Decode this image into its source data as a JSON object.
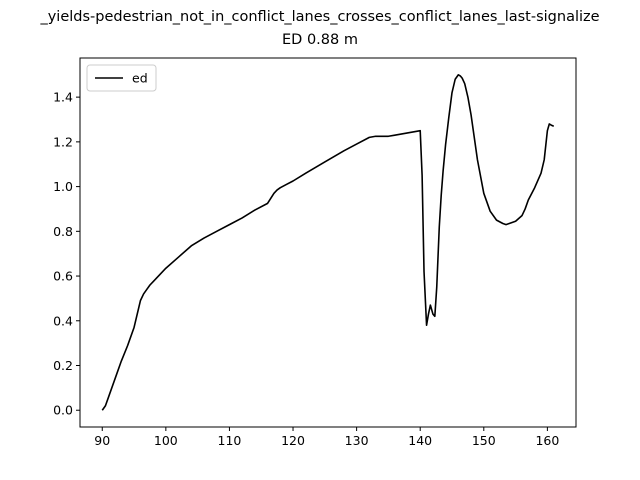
{
  "chart_data": {
    "type": "line",
    "title": "_yields-pedestrian_not_in_conflict_lanes_crosses_conflict_lanes_last-signalize",
    "subtitle": "ED 0.88 m",
    "xlabel": "",
    "ylabel": "",
    "xlim": [
      86.5,
      164.5
    ],
    "ylim": [
      -0.075,
      1.575
    ],
    "x_ticks": [
      90,
      100,
      110,
      120,
      130,
      140,
      150,
      160
    ],
    "x_tick_labels": [
      "90",
      "100",
      "110",
      "120",
      "130",
      "140",
      "150",
      "160"
    ],
    "y_ticks": [
      0.0,
      0.2,
      0.4,
      0.6,
      0.8,
      1.0,
      1.2,
      1.4
    ],
    "y_tick_labels": [
      "0.0",
      "0.2",
      "0.4",
      "0.6",
      "0.8",
      "1.0",
      "1.2",
      "1.4"
    ],
    "grid": false,
    "legend_position": "top-left",
    "series": [
      {
        "name": "ed",
        "color": "#000000",
        "x": [
          90.0,
          90.5,
          91.0,
          92.0,
          93.0,
          94.0,
          95.0,
          95.5,
          96.0,
          96.5,
          97.0,
          97.5,
          98.0,
          99.0,
          100.0,
          102.0,
          104.0,
          106.0,
          108.0,
          110.0,
          112.0,
          114.0,
          116.0,
          117.0,
          117.5,
          118.0,
          119.0,
          120.0,
          122.0,
          125.0,
          128.0,
          130.0,
          132.0,
          133.0,
          135.0,
          136.0,
          137.0,
          138.0,
          139.0,
          140.0,
          140.3,
          140.6,
          141.0,
          141.3,
          141.6,
          142.0,
          142.3,
          142.6,
          143.0,
          143.3,
          143.6,
          144.0,
          144.5,
          145.0,
          145.5,
          146.0,
          146.3,
          146.6,
          147.0,
          147.5,
          148.0,
          148.5,
          149.0,
          150.0,
          151.0,
          152.0,
          153.0,
          153.5,
          154.0,
          154.5,
          155.0,
          156.0,
          156.5,
          157.0,
          158.0,
          159.0,
          159.5,
          160.0,
          160.3,
          160.6,
          161.0
        ],
        "y": [
          0.0,
          0.02,
          0.06,
          0.14,
          0.22,
          0.29,
          0.37,
          0.43,
          0.49,
          0.52,
          0.54,
          0.56,
          0.575,
          0.605,
          0.635,
          0.685,
          0.735,
          0.77,
          0.8,
          0.83,
          0.86,
          0.895,
          0.925,
          0.97,
          0.985,
          0.995,
          1.01,
          1.025,
          1.06,
          1.11,
          1.16,
          1.19,
          1.22,
          1.225,
          1.225,
          1.23,
          1.235,
          1.24,
          1.245,
          1.25,
          1.05,
          0.62,
          0.38,
          0.43,
          0.47,
          0.43,
          0.42,
          0.55,
          0.82,
          0.96,
          1.07,
          1.19,
          1.31,
          1.42,
          1.48,
          1.5,
          1.495,
          1.485,
          1.46,
          1.4,
          1.32,
          1.22,
          1.12,
          0.97,
          0.89,
          0.85,
          0.835,
          0.83,
          0.835,
          0.84,
          0.845,
          0.87,
          0.9,
          0.94,
          0.995,
          1.06,
          1.12,
          1.25,
          1.28,
          1.275,
          1.27
        ]
      }
    ]
  }
}
